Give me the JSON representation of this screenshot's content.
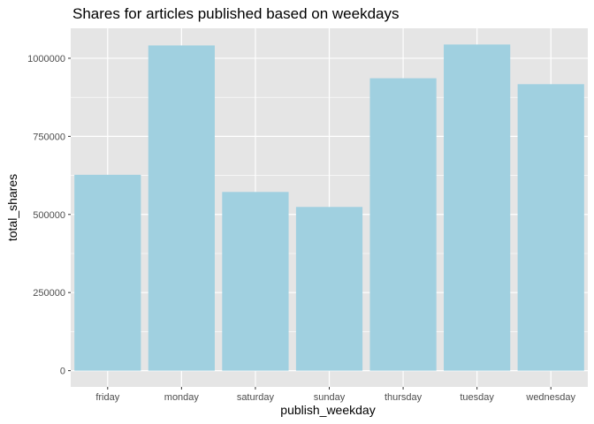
{
  "chart_data": {
    "type": "bar",
    "title": "Shares for articles published based on weekdays",
    "xlabel": "publish_weekday",
    "ylabel": "total_shares",
    "categories": [
      "friday",
      "monday",
      "saturday",
      "sunday",
      "thursday",
      "tuesday",
      "wednesday"
    ],
    "values": [
      627000,
      1041000,
      572000,
      524000,
      936000,
      1044000,
      917000
    ],
    "yticks": [
      0,
      250000,
      500000,
      750000,
      1000000
    ],
    "ytick_labels": [
      "0",
      "250000",
      "500000",
      "750000",
      "1000000"
    ],
    "ylim": [
      -52000,
      1096000
    ],
    "grid": true,
    "bar_color": "#a0d0e0",
    "panel_color": "#e5e5e5",
    "grid_color": "#ffffff"
  }
}
